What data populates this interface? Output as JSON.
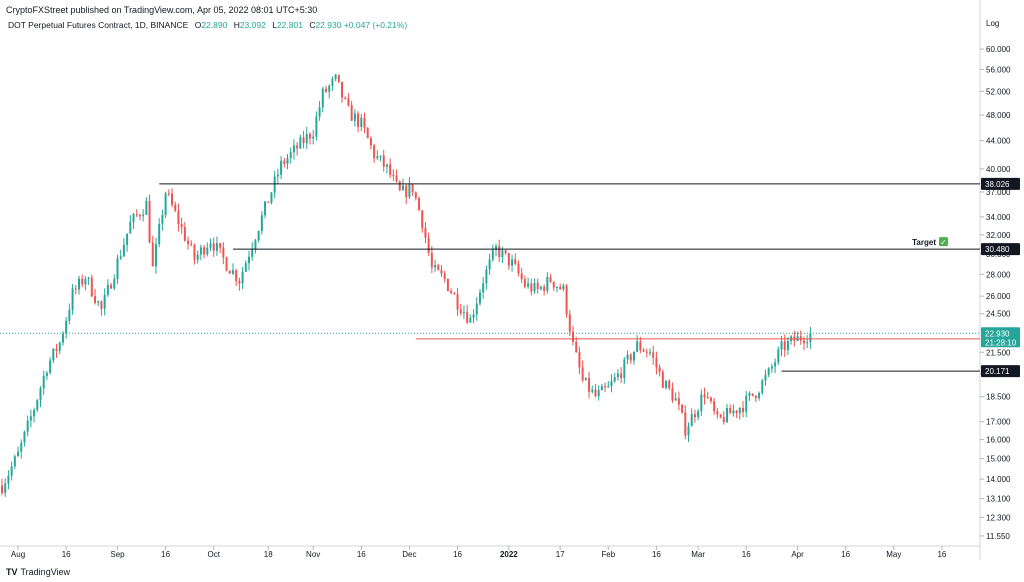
{
  "header": {
    "publish_line": "CryptoFXStreet published on TradingView.com, Apr 05, 2022 08:01 UTC+5:30",
    "symbol": "DOT Perpetual Futures Contract, 1D, BINANCE",
    "ohlc": {
      "o_label": "O",
      "o_value": "22.890",
      "h_label": "H",
      "h_value": "23.092",
      "l_label": "L",
      "l_value": "22.801",
      "c_label": "C",
      "c_value": "22.930",
      "change": "+0.047 (+0.21%)"
    }
  },
  "footer": {
    "logo_mark": "TV",
    "logo_text": "TradingView"
  },
  "scale": {
    "label": "Log"
  },
  "colors": {
    "up": "#26a69a",
    "down": "#ef5350",
    "line": "#131722",
    "red_line": "#ef5350",
    "current": "#26a69a",
    "grid": "#f0f3fa",
    "target_check": "#4caf50"
  },
  "chart_data": {
    "type": "candlestick",
    "scale": "log",
    "y_range": [
      11.2,
      64
    ],
    "y_ticks": [
      "60.000",
      "56.000",
      "52.000",
      "48.000",
      "44.000",
      "40.000",
      "37.000",
      "34.000",
      "32.000",
      "30.000",
      "28.000",
      "26.000",
      "24.500",
      "21.500",
      "20.000",
      "18.500",
      "17.000",
      "16.000",
      "15.000",
      "14.000",
      "13.100",
      "12.300",
      "11.550"
    ],
    "x_range": [
      "2021-07-27",
      "2022-05-26"
    ],
    "x_ticks": [
      {
        "label": "Aug",
        "date": "2021-08-01"
      },
      {
        "label": "16",
        "date": "2021-08-16"
      },
      {
        "label": "Sep",
        "date": "2021-09-01"
      },
      {
        "label": "16",
        "date": "2021-09-16"
      },
      {
        "label": "Oct",
        "date": "2021-10-01"
      },
      {
        "label": "18",
        "date": "2021-10-18"
      },
      {
        "label": "Nov",
        "date": "2021-11-01"
      },
      {
        "label": "16",
        "date": "2021-11-16"
      },
      {
        "label": "Dec",
        "date": "2021-12-01"
      },
      {
        "label": "16",
        "date": "2021-12-16"
      },
      {
        "label": "2022",
        "date": "2022-01-01"
      },
      {
        "label": "17",
        "date": "2022-01-17"
      },
      {
        "label": "Feb",
        "date": "2022-02-01"
      },
      {
        "label": "16",
        "date": "2022-02-16"
      },
      {
        "label": "Mar",
        "date": "2022-03-01"
      },
      {
        "label": "16",
        "date": "2022-03-16"
      },
      {
        "label": "Apr",
        "date": "2022-04-01"
      },
      {
        "label": "16",
        "date": "2022-04-16"
      },
      {
        "label": "May",
        "date": "2022-05-01"
      },
      {
        "label": "16",
        "date": "2022-05-16"
      }
    ],
    "price_path": {
      "start": "2021-07-27",
      "end": "2022-04-05",
      "close_path": [
        {
          "date": "2021-07-27",
          "close": 13.7
        },
        {
          "date": "2021-08-01",
          "close": 15.2
        },
        {
          "date": "2021-08-06",
          "close": 17.8
        },
        {
          "date": "2021-08-10",
          "close": 20.5
        },
        {
          "date": "2021-08-14",
          "close": 22.2
        },
        {
          "date": "2021-08-18",
          "close": 26.2
        },
        {
          "date": "2021-08-22",
          "close": 27.8
        },
        {
          "date": "2021-08-27",
          "close": 24.8
        },
        {
          "date": "2021-09-01",
          "close": 29.2
        },
        {
          "date": "2021-09-05",
          "close": 33.2
        },
        {
          "date": "2021-09-10",
          "close": 35.5
        },
        {
          "date": "2021-09-12",
          "close": 28.5
        },
        {
          "date": "2021-09-16",
          "close": 37.0
        },
        {
          "date": "2021-09-20",
          "close": 33.5
        },
        {
          "date": "2021-09-25",
          "close": 29.5
        },
        {
          "date": "2021-09-30",
          "close": 31.5
        },
        {
          "date": "2021-10-05",
          "close": 29.0
        },
        {
          "date": "2021-10-09",
          "close": 27.5
        },
        {
          "date": "2021-10-14",
          "close": 32.0
        },
        {
          "date": "2021-10-18",
          "close": 36.0
        },
        {
          "date": "2021-10-22",
          "close": 40.5
        },
        {
          "date": "2021-10-27",
          "close": 43.0
        },
        {
          "date": "2021-11-01",
          "close": 45.5
        },
        {
          "date": "2021-11-04",
          "close": 51.5
        },
        {
          "date": "2021-11-08",
          "close": 54.0
        },
        {
          "date": "2021-11-12",
          "close": 48.5
        },
        {
          "date": "2021-11-16",
          "close": 46.5
        },
        {
          "date": "2021-11-20",
          "close": 42.0
        },
        {
          "date": "2021-11-24",
          "close": 40.0
        },
        {
          "date": "2021-11-28",
          "close": 36.8
        },
        {
          "date": "2021-12-02",
          "close": 37.5
        },
        {
          "date": "2021-12-05",
          "close": 33.5
        },
        {
          "date": "2021-12-08",
          "close": 28.5
        },
        {
          "date": "2021-12-12",
          "close": 27.5
        },
        {
          "date": "2021-12-16",
          "close": 25.5
        },
        {
          "date": "2021-12-20",
          "close": 24.0
        },
        {
          "date": "2021-12-24",
          "close": 27.5
        },
        {
          "date": "2021-12-28",
          "close": 30.5
        },
        {
          "date": "2022-01-02",
          "close": 29.0
        },
        {
          "date": "2022-01-06",
          "close": 27.0
        },
        {
          "date": "2022-01-10",
          "close": 26.5
        },
        {
          "date": "2022-01-14",
          "close": 27.5
        },
        {
          "date": "2022-01-18",
          "close": 26.5
        },
        {
          "date": "2022-01-21",
          "close": 22.0
        },
        {
          "date": "2022-01-24",
          "close": 19.5
        },
        {
          "date": "2022-01-28",
          "close": 18.5
        },
        {
          "date": "2022-02-01",
          "close": 19.0
        },
        {
          "date": "2022-02-06",
          "close": 20.5
        },
        {
          "date": "2022-02-10",
          "close": 22.0
        },
        {
          "date": "2022-02-14",
          "close": 21.5
        },
        {
          "date": "2022-02-18",
          "close": 19.5
        },
        {
          "date": "2022-02-22",
          "close": 18.3
        },
        {
          "date": "2022-02-25",
          "close": 16.6
        },
        {
          "date": "2022-02-28",
          "close": 17.6
        },
        {
          "date": "2022-03-03",
          "close": 18.8
        },
        {
          "date": "2022-03-07",
          "close": 17.0
        },
        {
          "date": "2022-03-11",
          "close": 17.5
        },
        {
          "date": "2022-03-15",
          "close": 18.0
        },
        {
          "date": "2022-03-19",
          "close": 18.8
        },
        {
          "date": "2022-03-23",
          "close": 20.0
        },
        {
          "date": "2022-03-27",
          "close": 21.8
        },
        {
          "date": "2022-03-31",
          "close": 22.4
        },
        {
          "date": "2022-04-03",
          "close": 22.7
        },
        {
          "date": "2022-04-05",
          "close": 22.93
        }
      ]
    },
    "horizontal_lines": [
      {
        "name": "level-38",
        "price": 38.026,
        "label": "38.026",
        "start": "2021-09-14",
        "color": "#131722"
      },
      {
        "name": "level-30",
        "price": 30.48,
        "label": "30.480",
        "start": "2021-10-07",
        "color": "#131722"
      },
      {
        "name": "level-22-5",
        "price": 22.5,
        "label": "22.500",
        "start": "2021-12-03",
        "color": "#ef5350"
      },
      {
        "name": "level-20",
        "price": 20.171,
        "label": "20.171",
        "start": "2022-03-27",
        "color": "#131722"
      }
    ],
    "current_price": {
      "price": 22.93,
      "label": "22.930",
      "countdown": "21:28:10"
    },
    "target": {
      "label": "Target",
      "check": "✓",
      "price": 30.48
    }
  }
}
